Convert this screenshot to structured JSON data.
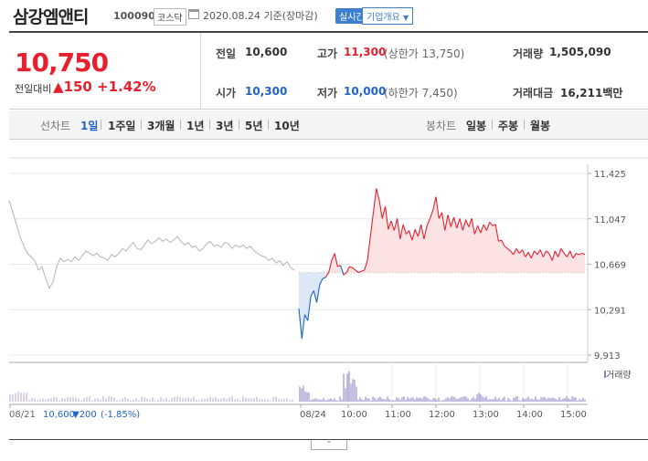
{
  "header": {
    "stock_name": "삼강엠앤티",
    "stock_code": "100090",
    "market": "코스닥",
    "date_text": "2020.08.24 기준(장마감)",
    "realtime_label": "실시간",
    "corp_info_label": "기업개요",
    "corp_info_arrow": "▼"
  },
  "quote": {
    "price": "10,750",
    "change_label": "전일대비",
    "change_value": "▲150",
    "change_pct": "+1.42%",
    "prev_close_label": "전일",
    "prev_close": "10,600",
    "high_label": "고가",
    "high": "11,300",
    "upper_limit": "(상한가 13,750)",
    "volume_label": "거래량",
    "volume": "1,505,090",
    "open_label": "시가",
    "open": "10,300",
    "low_label": "저가",
    "low": "10,000",
    "lower_limit": "(하한가 7,450)",
    "amount_label": "거래대금",
    "amount": "16,211",
    "amount_unit": "백만"
  },
  "tabs": {
    "line_label": "선차트",
    "line_periods": [
      "1일",
      "1주일",
      "3개월",
      "1년",
      "3년",
      "5년",
      "10년"
    ],
    "selected": "1일",
    "candle_label": "봉차트",
    "candle_periods": [
      "일봉",
      "주봉",
      "월봉"
    ]
  },
  "chart_data": {
    "type": "line",
    "y_ticks": [
      "11,425",
      "11,047",
      "10,669",
      "10,291",
      "9,913"
    ],
    "ylim": [
      9913,
      11425
    ],
    "reference_price": 10600,
    "x_tick_labels": [
      "08/21",
      "08/24",
      "10:00",
      "11:00",
      "12:00",
      "13:00",
      "14:00",
      "15:00"
    ],
    "prev_day_footer": {
      "date": "08/21",
      "close": "10,600",
      "change": "▼200",
      "pct": "(-1.85%)"
    },
    "volume_legend": "거래량",
    "colors": {
      "prev_day": "#b5b5b5",
      "up": "#e7202e",
      "down": "#1e63c8",
      "up_fill": "#fbe3e3",
      "down_fill": "#dde8f7"
    },
    "prev_day_series": [
      11200,
      11100,
      11000,
      10900,
      10820,
      10760,
      10730,
      10700,
      10620,
      10650,
      10550,
      10470,
      10520,
      10650,
      10720,
      10690,
      10710,
      10690,
      10730,
      10700,
      10740,
      10780,
      10760,
      10740,
      10760,
      10730,
      10720,
      10700,
      10750,
      10730,
      10760,
      10800,
      10780,
      10820,
      10850,
      10800,
      10790,
      10830,
      10870,
      10840,
      10860,
      10890,
      10860,
      10880,
      10850,
      10870,
      10900,
      10860,
      10830,
      10850,
      10810,
      10820,
      10780,
      10800,
      10840,
      10860,
      10820,
      10830,
      10810,
      10850,
      10840,
      10800,
      10830,
      10810,
      10830,
      10800,
      10820,
      10780,
      10760,
      10740,
      10730,
      10700,
      10720,
      10680,
      10700,
      10660,
      10690,
      10640,
      10620
    ],
    "today_series": [
      10300,
      10050,
      10250,
      10200,
      10400,
      10450,
      10350,
      10500,
      10550,
      10560,
      10600,
      10700,
      10760,
      10650,
      10660,
      10580,
      10600,
      10650,
      10640,
      10620,
      10600,
      10610,
      10620,
      10700,
      10900,
      11100,
      11300,
      11200,
      11050,
      11150,
      10960,
      11030,
      10950,
      11050,
      10880,
      11000,
      10920,
      10950,
      10870,
      10960,
      10900,
      11000,
      10880,
      10990,
      11050,
      11120,
      11230,
      11050,
      11100,
      10950,
      11080,
      10980,
      11060,
      10970,
      11050,
      10950,
      11040,
      10980,
      11050,
      10920,
      10990,
      10930,
      11000,
      10950,
      11020,
      10990,
      11000,
      10860,
      10870,
      10820,
      10800,
      10780,
      10750,
      10800,
      10760,
      10790,
      10730,
      10770,
      10720,
      10780,
      10750,
      10790,
      10730,
      10780,
      10760,
      10700,
      10780,
      10730,
      10800,
      10760,
      10730,
      10780,
      10720,
      10760,
      10750,
      10760,
      10750
    ]
  }
}
